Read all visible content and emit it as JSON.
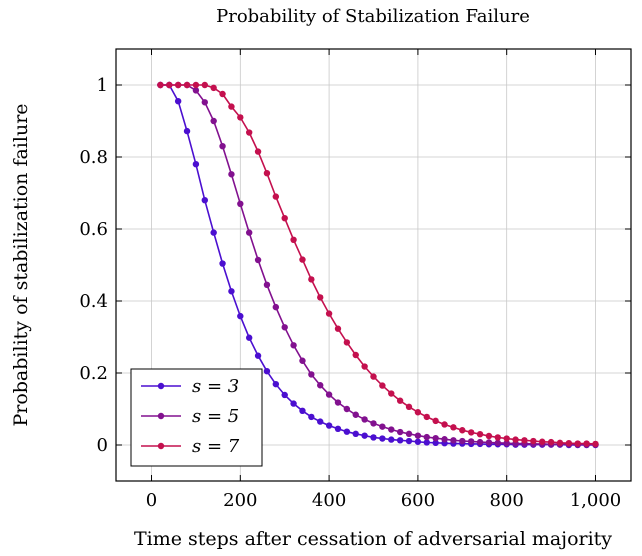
{
  "chart_data": {
    "type": "line",
    "title": "Probability of Stabilization Failure",
    "xlabel": "Time steps after cessation of adversarial majority",
    "ylabel": "Probability of stabilization failure",
    "xlim": [
      -80,
      1080
    ],
    "ylim": [
      -0.1,
      1.1
    ],
    "x_ticks": [
      0,
      200,
      400,
      600,
      800,
      1000
    ],
    "x_tick_labels": [
      "0",
      "200",
      "400",
      "600",
      "800",
      "1,000"
    ],
    "y_ticks": [
      0,
      0.2,
      0.4,
      0.6,
      0.8,
      1
    ],
    "y_tick_labels": [
      "0",
      "0.2",
      "0.4",
      "0.6",
      "0.8",
      "1"
    ],
    "grid": true,
    "legend_position": "bottom-left",
    "x": [
      20,
      40,
      60,
      80,
      100,
      120,
      140,
      160,
      180,
      200,
      220,
      240,
      260,
      280,
      300,
      320,
      340,
      360,
      380,
      400,
      420,
      440,
      460,
      480,
      500,
      520,
      540,
      560,
      580,
      600,
      620,
      640,
      660,
      680,
      700,
      720,
      740,
      760,
      780,
      800,
      820,
      840,
      860,
      880,
      900,
      920,
      940,
      960,
      980,
      1000
    ],
    "series": [
      {
        "name": "s = 3",
        "color": "#4b0fd0",
        "values": [
          1.0,
          1.0,
          0.955,
          0.872,
          0.78,
          0.68,
          0.59,
          0.504,
          0.427,
          0.358,
          0.298,
          0.248,
          0.205,
          0.169,
          0.139,
          0.115,
          0.095,
          0.078,
          0.065,
          0.054,
          0.045,
          0.037,
          0.031,
          0.026,
          0.021,
          0.018,
          0.015,
          0.013,
          0.011,
          0.009,
          0.007,
          0.006,
          0.005,
          0.004,
          0.004,
          0.003,
          0.003,
          0.002,
          0.002,
          0.002,
          0.001,
          0.001,
          0.001,
          0.001,
          0.001,
          0.001,
          0.0,
          0.0,
          0.0,
          0.0
        ]
      },
      {
        "name": "s = 5",
        "color": "#82118f",
        "values": [
          1.0,
          1.0,
          1.0,
          1.0,
          0.985,
          0.952,
          0.9,
          0.83,
          0.752,
          0.67,
          0.59,
          0.514,
          0.445,
          0.383,
          0.327,
          0.277,
          0.234,
          0.196,
          0.166,
          0.14,
          0.118,
          0.1,
          0.084,
          0.071,
          0.06,
          0.051,
          0.043,
          0.036,
          0.031,
          0.026,
          0.022,
          0.019,
          0.016,
          0.013,
          0.011,
          0.01,
          0.008,
          0.007,
          0.006,
          0.005,
          0.004,
          0.004,
          0.003,
          0.003,
          0.002,
          0.002,
          0.002,
          0.001,
          0.001,
          0.001
        ]
      },
      {
        "name": "s = 7",
        "color": "#c4104e",
        "values": [
          1.0,
          1.0,
          1.0,
          1.0,
          1.0,
          1.0,
          0.992,
          0.975,
          0.94,
          0.91,
          0.868,
          0.815,
          0.755,
          0.69,
          0.63,
          0.57,
          0.515,
          0.46,
          0.41,
          0.365,
          0.323,
          0.285,
          0.25,
          0.218,
          0.19,
          0.165,
          0.143,
          0.123,
          0.106,
          0.091,
          0.078,
          0.067,
          0.057,
          0.049,
          0.041,
          0.035,
          0.03,
          0.025,
          0.021,
          0.018,
          0.015,
          0.013,
          0.011,
          0.009,
          0.008,
          0.006,
          0.005,
          0.004,
          0.004,
          0.003
        ]
      }
    ]
  }
}
